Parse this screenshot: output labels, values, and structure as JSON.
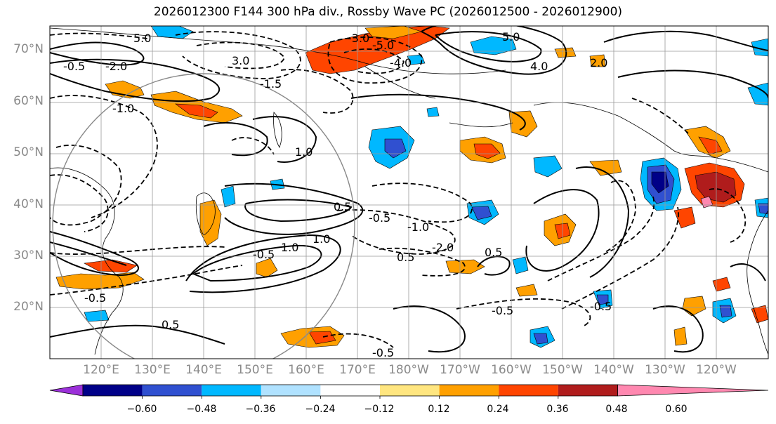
{
  "title": "2026012300 F144 300 hPa div., Rossby Wave PC (2026012500 - 2026012900)",
  "lat_labels": [
    "70°N",
    "60°N",
    "50°N",
    "40°N",
    "30°N",
    "20°N"
  ],
  "lon_labels": [
    "120°E",
    "130°E",
    "140°E",
    "150°E",
    "160°E",
    "170°E",
    "180°W",
    "170°W",
    "160°W",
    "150°W",
    "140°W",
    "130°W",
    "120°W"
  ],
  "colorbar": {
    "colors": [
      "#9b30d9",
      "#000088",
      "#3050d0",
      "#00b8ff",
      "#b0e2ff",
      "#ffffff",
      "#ffe680",
      "#ffa000",
      "#ff4500",
      "#b01c1c",
      "#ff88b0"
    ],
    "tick_labels": [
      "−0.60",
      "−0.48",
      "−0.36",
      "−0.24",
      "−0.12",
      "0.12",
      "0.24",
      "0.36",
      "0.48",
      "0.60"
    ]
  },
  "contour_labels": [
    "5.0",
    "3.0",
    "1.0",
    "0.5",
    "-3.0",
    "-5.0",
    "-4.0",
    "-2.0",
    "-1.0",
    "-1.5",
    "-0.5",
    "5.0",
    "4.0",
    "2.0",
    "1.0",
    "0.5",
    "-0.5",
    "-1.0",
    "-2.0",
    "-0.5",
    "1.0",
    "-0.5",
    "0.5",
    "-0.5",
    "-0.5",
    "0.5",
    "-0.5"
  ]
}
